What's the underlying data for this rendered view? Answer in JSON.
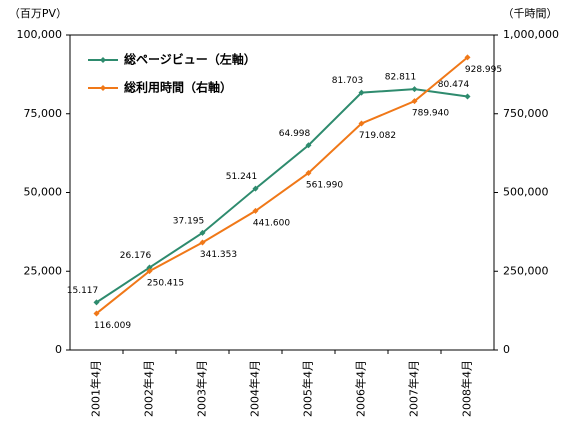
{
  "chart_data": {
    "type": "line",
    "y_unit_label": "（百万PV）",
    "y2_unit_label": "（千時間）",
    "categories": [
      "2001年4月",
      "2002年4月",
      "2003年4月",
      "2004年4月",
      "2005年4月",
      "2006年4月",
      "2007年4月",
      "2008年4月"
    ],
    "series": [
      {
        "name": "総ページビュー（左軸）",
        "color": "#2e8b6e",
        "axis": "y",
        "values": [
          15117,
          26176,
          37195,
          51241,
          64998,
          81703,
          82811,
          80474
        ],
        "value_labels": [
          "15.117",
          "26.176",
          "37.195",
          "51.241",
          "64.998",
          "81.703",
          "82.811",
          "80.474"
        ]
      },
      {
        "name": "総利用時間（右軸）",
        "color": "#f07818",
        "axis": "y2",
        "values": [
          116009,
          250415,
          341353,
          441600,
          561990,
          719082,
          789940,
          928995
        ],
        "value_labels": [
          "116.009",
          "250.415",
          "341.353",
          "441.600",
          "561.990",
          "719.082",
          "789.940",
          "928.995"
        ]
      }
    ],
    "ylim": [
      0,
      100000
    ],
    "yticks": [
      0,
      {
        "value": 25000,
        "label": "25,000"
      },
      {
        "value": 50000,
        "label": "50,000"
      },
      {
        "value": 75000,
        "label": "75,000"
      },
      {
        "value": 100000,
        "label": "100,000"
      }
    ],
    "y2lim": [
      0,
      1000000
    ],
    "y2ticks": [
      0,
      {
        "value": 250000,
        "label": "250,000"
      },
      {
        "value": 500000,
        "label": "500,000"
      },
      {
        "value": 750000,
        "label": "750,000"
      },
      {
        "value": 1000000,
        "label": "1,000,000"
      }
    ],
    "grid": false,
    "legend": "top-left"
  }
}
